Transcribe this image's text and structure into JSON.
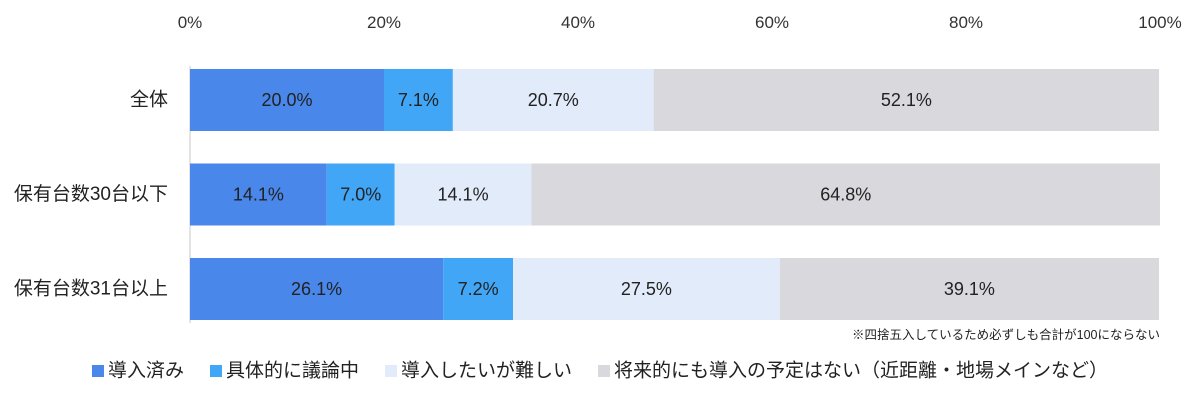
{
  "chart_data": {
    "type": "bar",
    "orientation": "horizontal",
    "stacked": true,
    "categories": [
      "全体",
      "保有台数30台以下",
      "保有台数31台以上"
    ],
    "series": [
      {
        "name": "導入済み",
        "color": "#4a87ea",
        "values": [
          20.0,
          14.1,
          26.1
        ]
      },
      {
        "name": "具体的に議論中",
        "color": "#42a6f7",
        "values": [
          7.1,
          7.0,
          7.2
        ]
      },
      {
        "name": "導入したいが難しい",
        "color": "#e2ebfa",
        "values": [
          20.7,
          14.1,
          27.5
        ]
      },
      {
        "name": "将来的にも導入の予定はない（近距離・地場メインなど）",
        "color": "#d9d8dc",
        "values": [
          52.1,
          64.8,
          39.1
        ]
      }
    ],
    "value_unit": "%",
    "xlim": [
      0,
      100
    ],
    "xticks": [
      0,
      20,
      40,
      60,
      80,
      100
    ],
    "x_axis_position": "top",
    "grid": false,
    "legend_position": "bottom",
    "note": "※四捨五入しているため必ずしも合計が100にならない"
  }
}
